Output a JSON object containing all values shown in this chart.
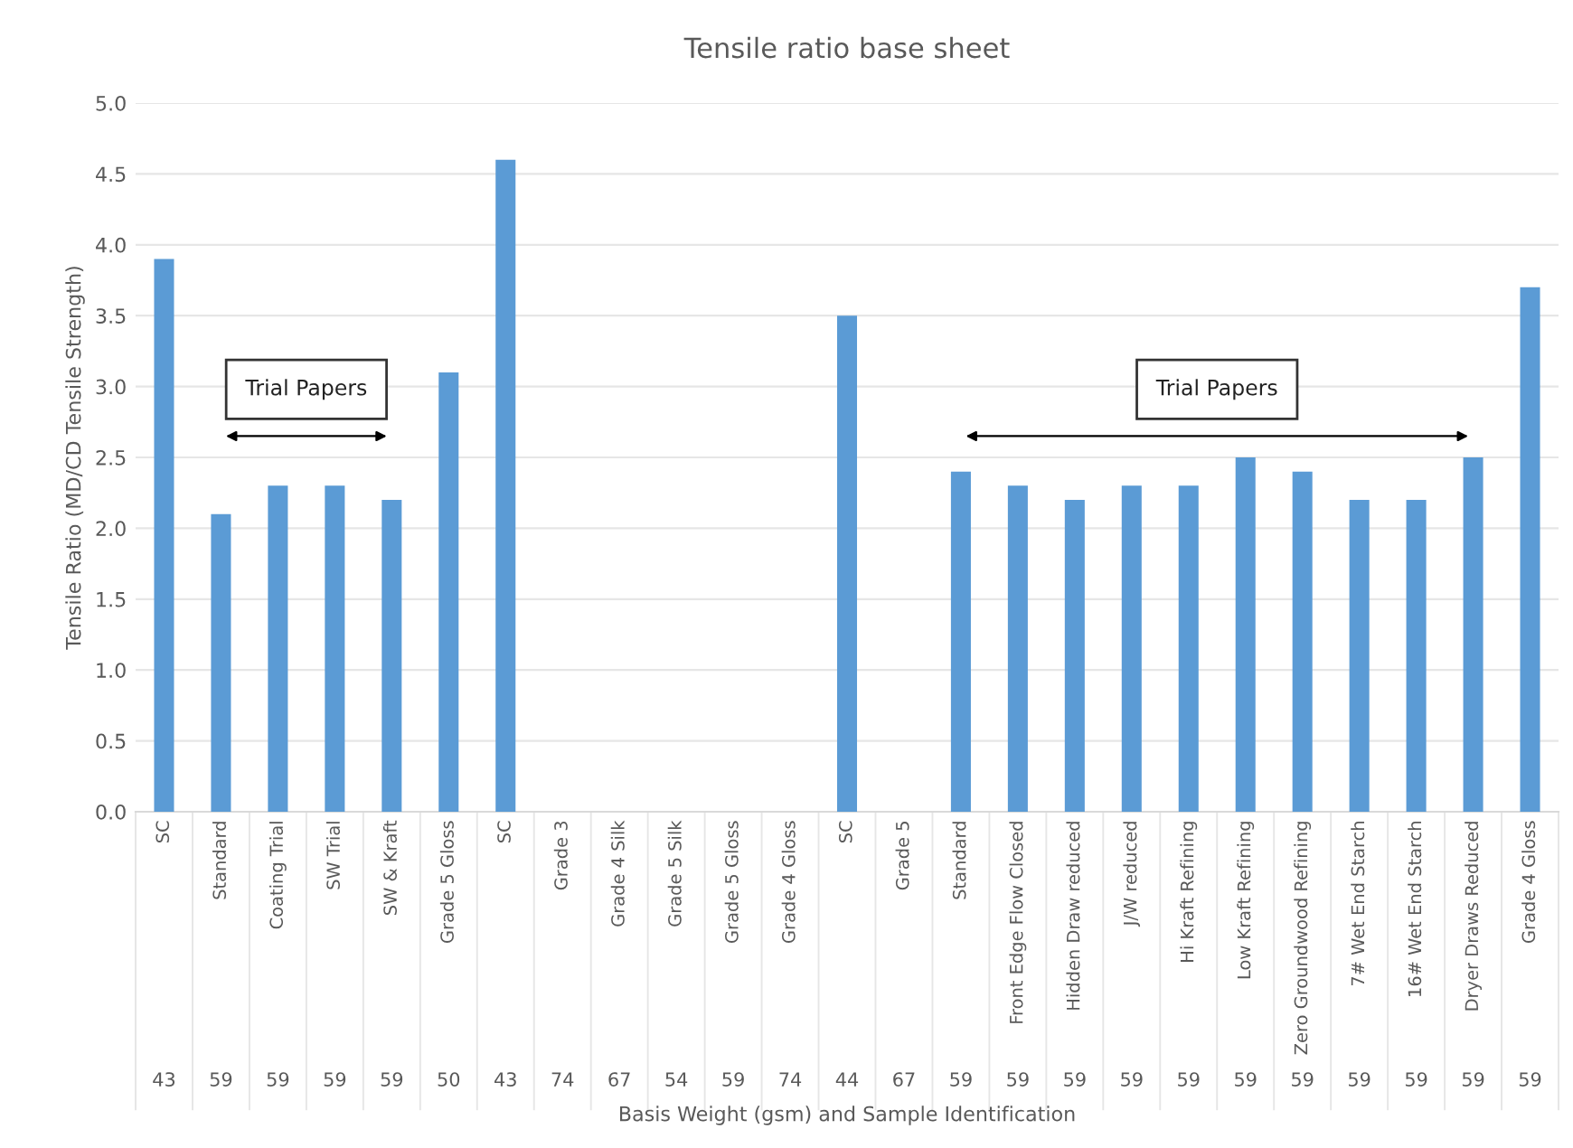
{
  "chart_data": {
    "type": "bar",
    "title": "Tensile ratio base sheet",
    "xlabel": "Basis Weight (gsm) and Sample Identification",
    "ylabel": "Tensile Ratio (MD/CD Tensile Strength)",
    "categories": [
      "SC",
      "Standard",
      "Coating Trial",
      "SW Trial",
      "SW & Kraft",
      "Grade 5 Gloss",
      "SC",
      "Grade 3",
      "Grade 4 Silk",
      "Grade 5 Silk",
      "Grade 5 Gloss",
      "Grade 4 Gloss",
      "SC",
      "Grade 5",
      "Standard",
      "Front Edge Flow Closed",
      "Hidden Draw reduced",
      "J/W reduced",
      "Hi Kraft Refining",
      "Low Kraft Refining",
      "Zero Groundwood Refining",
      "7# Wet End Starch",
      "16# Wet End Starch",
      "Dryer Draws Reduced",
      "Grade 4 Gloss"
    ],
    "values": [
      3.9,
      2.1,
      2.3,
      2.3,
      2.2,
      3.1,
      4.6,
      null,
      null,
      null,
      null,
      null,
      3.5,
      null,
      2.4,
      2.3,
      2.2,
      2.3,
      2.3,
      2.5,
      2.4,
      2.2,
      2.2,
      2.5,
      3.7
    ],
    "color": "#5b9bd5",
    "annotations": [
      "43",
      "59",
      "59",
      "59",
      "59",
      "50",
      "43",
      "74",
      "67",
      "54",
      "59",
      "74",
      "44",
      "67",
      "59",
      "59",
      "59",
      "59",
      "59",
      "59",
      "59",
      "59",
      "59",
      "59",
      "59",
      "Trial Papers",
      "Trial Papers"
    ],
    "ylim": [
      0,
      5
    ],
    "yticks": [
      {
        "value": 0,
        "label": "0.0"
      },
      {
        "value": 0.5,
        "label": "0.5"
      },
      {
        "value": 1,
        "label": "1.0"
      },
      {
        "value": 1.5,
        "label": "1.5"
      },
      {
        "value": 2,
        "label": "2.0"
      },
      {
        "value": 2.5,
        "label": "2.5"
      },
      {
        "value": 3,
        "label": "3.0"
      },
      {
        "value": 3.5,
        "label": "3.5"
      },
      {
        "value": 4,
        "label": "4.0"
      },
      {
        "value": 4.5,
        "label": "4.5"
      },
      {
        "value": 5,
        "label": "5.0"
      }
    ],
    "grid": "y"
  }
}
